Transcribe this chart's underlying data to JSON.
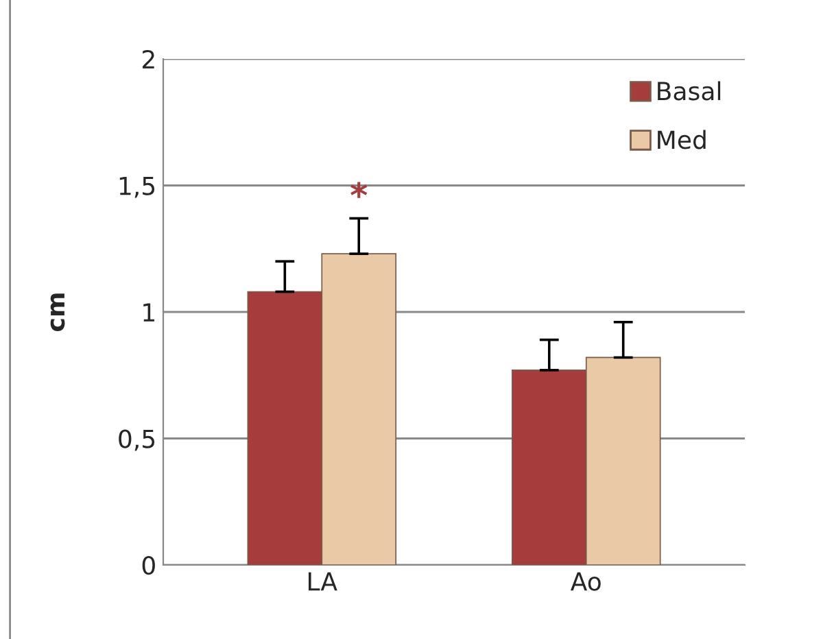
{
  "chart_data": {
    "type": "bar",
    "ylabel": "cm",
    "categories": [
      "LA",
      "Ao"
    ],
    "series": [
      {
        "name": "Basal",
        "color": "#a63c3c",
        "values": [
          1.08,
          0.77
        ],
        "errors": [
          [
            1.08,
            1.2
          ],
          [
            0.77,
            0.89
          ]
        ]
      },
      {
        "name": "Med",
        "color": "#e9c9a6",
        "values": [
          1.23,
          0.82
        ],
        "errors": [
          [
            1.23,
            1.37
          ],
          [
            0.82,
            0.96
          ]
        ]
      }
    ],
    "ylim": [
      0,
      2
    ],
    "yticks": [
      0,
      {
        "value": 0.5,
        "label": "0,5"
      },
      1,
      {
        "value": 1.5,
        "label": "1,5"
      },
      2
    ],
    "grid": "y",
    "legend": "top right",
    "annotations": [
      "*"
    ]
  }
}
